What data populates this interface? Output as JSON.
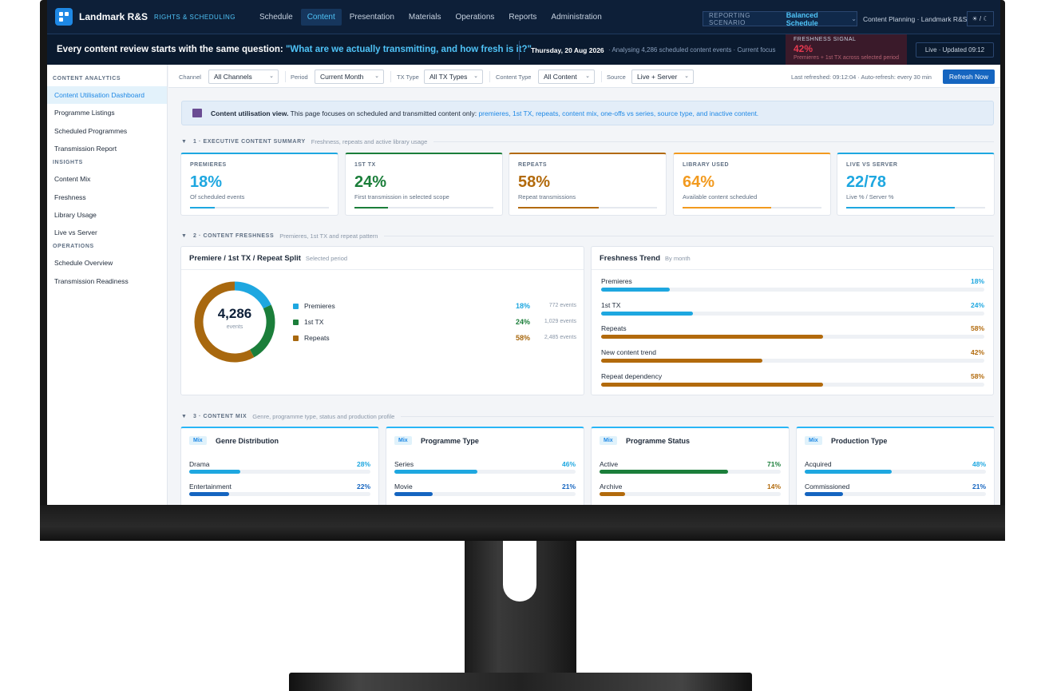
{
  "app": {
    "title": "Landmark R&S",
    "subtitle": "RIGHTS & SCHEDULING"
  },
  "nav": {
    "items": [
      "Schedule",
      "Content",
      "Presentation",
      "Materials",
      "Operations",
      "Reports",
      "Administration"
    ],
    "active": "Content"
  },
  "scenario": {
    "label": "REPORTING SCENARIO",
    "value": "Balanced Schedule"
  },
  "planning": "Content Planning · Landmark R&S",
  "theme_toggle": "☀ / ☾",
  "banner": {
    "question_prefix": "Every content review starts with the same question:",
    "question_highlight": "\"What are we actually transmitting, and how fresh is it?\"",
    "date": "Thursday, 20 Aug 2026",
    "analysis": "· Analysing 4,286 scheduled content events · Current focus",
    "freshness_label": "FRESHNESS SIGNAL",
    "freshness_value": "42%",
    "freshness_sub": "Premieres + 1st TX across selected period",
    "live": "Live · Updated 09:12"
  },
  "sidebar": {
    "sections": [
      {
        "head": "CONTENT ANALYTICS",
        "items": [
          "Content Utilisation Dashboard",
          "Programme Listings",
          "Scheduled Programmes",
          "Transmission Report"
        ]
      },
      {
        "head": "INSIGHTS",
        "items": [
          "Content Mix",
          "Freshness",
          "Library Usage",
          "Live vs Server"
        ]
      },
      {
        "head": "OPERATIONS",
        "items": [
          "Schedule Overview",
          "Transmission Readiness"
        ]
      }
    ],
    "active": "Content Utilisation Dashboard"
  },
  "filters": {
    "channel_label": "Channel",
    "channel": "All Channels",
    "period_label": "Period",
    "period": "Current Month",
    "txtype_label": "TX Type",
    "txtype": "All TX Types",
    "ctype_label": "Content Type",
    "ctype": "All Content",
    "source_label": "Source",
    "source": "Live + Server",
    "refreshed": "Last refreshed: 09:12:04 · Auto-refresh: every 30 min",
    "refresh_button": "Refresh Now"
  },
  "info": {
    "bold": "Content utilisation view.",
    "text": " This page focuses on scheduled and transmitted content only: ",
    "highlight": "premieres, 1st TX, repeats, content mix, one-offs vs series, source type, and inactive content."
  },
  "sections": {
    "s1": {
      "title": "1 · EXECUTIVE CONTENT SUMMARY",
      "desc": "Freshness, repeats and active library usage"
    },
    "s2": {
      "title": "2 · CONTENT FRESHNESS",
      "desc": "Premieres, 1st TX and repeat pattern"
    },
    "s3": {
      "title": "3 · CONTENT MIX",
      "desc": "Genre, programme type, status and production profile"
    }
  },
  "kpis": [
    {
      "label": "PREMIERES",
      "value": "18%",
      "sub": "Of scheduled events",
      "fill": 0.18,
      "color": "#1ea7e0"
    },
    {
      "label": "1ST TX",
      "value": "24%",
      "sub": "First transmission in selected scope",
      "fill": 0.24,
      "color": "#1b7e3a"
    },
    {
      "label": "REPEATS",
      "value": "58%",
      "sub": "Repeat transmissions",
      "fill": 0.58,
      "color": "#b26a0c"
    },
    {
      "label": "LIBRARY USED",
      "value": "64%",
      "sub": "Available content scheduled",
      "fill": 0.64,
      "color": "#f29a1f"
    },
    {
      "label": "LIVE VS SERVER",
      "value": "22/78",
      "sub": "Live % / Server %",
      "fill": 0.78,
      "color": "#1ea7e0"
    }
  ],
  "split": {
    "title": "Premiere / 1st TX / Repeat Split",
    "sub": "Selected period",
    "total": "4,286",
    "total_label": "events",
    "rows": [
      {
        "name": "Premieres",
        "pct": "18%",
        "events": "772 events",
        "value": 18,
        "color": "#1ea7e0"
      },
      {
        "name": "1st TX",
        "pct": "24%",
        "events": "1,029 events",
        "value": 24,
        "color": "#1b7e3a"
      },
      {
        "name": "Repeats",
        "pct": "58%",
        "events": "2,485 events",
        "value": 58,
        "color": "#a8680f"
      }
    ]
  },
  "trend": {
    "title": "Freshness Trend",
    "sub": "By month",
    "rows": [
      {
        "name": "Premieres",
        "pct": "18%",
        "fill": 0.18,
        "color": "#1ea7e0"
      },
      {
        "name": "1st TX",
        "pct": "24%",
        "fill": 0.24,
        "color": "#1ea7e0"
      },
      {
        "name": "Repeats",
        "pct": "58%",
        "fill": 0.58,
        "color": "#b26a0c"
      },
      {
        "name": "New content trend",
        "pct": "42%",
        "fill": 0.42,
        "color": "#b26a0c"
      },
      {
        "name": "Repeat dependency",
        "pct": "58%",
        "fill": 0.58,
        "color": "#b26a0c"
      }
    ]
  },
  "mix": [
    {
      "tag": "Mix",
      "title": "Genre Distribution",
      "rows": [
        {
          "name": "Drama",
          "pct": "28%",
          "fill": 0.28,
          "color": "#1ea7e0"
        },
        {
          "name": "Entertainment",
          "pct": "22%",
          "fill": 0.22,
          "color": "#1565c0"
        }
      ]
    },
    {
      "tag": "Mix",
      "title": "Programme Type",
      "rows": [
        {
          "name": "Series",
          "pct": "46%",
          "fill": 0.46,
          "color": "#1ea7e0"
        },
        {
          "name": "Movie",
          "pct": "21%",
          "fill": 0.21,
          "color": "#1565c0"
        }
      ]
    },
    {
      "tag": "Mix",
      "title": "Programme Status",
      "rows": [
        {
          "name": "Active",
          "pct": "71%",
          "fill": 0.71,
          "color": "#1b7e3a"
        },
        {
          "name": "Archive",
          "pct": "14%",
          "fill": 0.14,
          "color": "#b26a0c"
        }
      ]
    },
    {
      "tag": "Mix",
      "title": "Production Type",
      "rows": [
        {
          "name": "Acquired",
          "pct": "48%",
          "fill": 0.48,
          "color": "#1ea7e0"
        },
        {
          "name": "Commissioned",
          "pct": "21%",
          "fill": 0.21,
          "color": "#1565c0"
        }
      ]
    }
  ]
}
